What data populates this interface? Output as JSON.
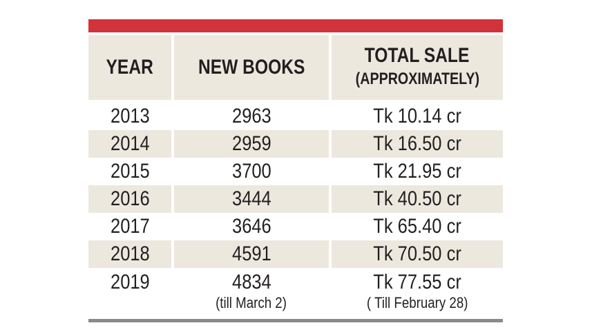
{
  "table": {
    "header": [
      "YEAR",
      "NEW BOOKS",
      "TOTAL SALE",
      "(APPROXIMATELY)"
    ],
    "rows": [
      {
        "year": 2013,
        "new_books": 2963,
        "total_sale": "Tk 10.14 cr"
      },
      {
        "year": 2014,
        "new_books": 2959,
        "total_sale": "Tk 16.50 cr"
      },
      {
        "year": 2015,
        "new_books": 3700,
        "total_sale": "Tk 21.95 cr"
      },
      {
        "year": 2016,
        "new_books": 3444,
        "total_sale": "Tk 40.50 cr"
      },
      {
        "year": 2017,
        "new_books": 3646,
        "total_sale": "Tk 65.40 cr"
      },
      {
        "year": 2018,
        "new_books": 4591,
        "total_sale": "Tk 70.50 cr"
      },
      {
        "year": 2019,
        "new_books": 4834,
        "total_sale": "Tk 77.55 cr",
        "books_note": "(till March 2)",
        "sale_note": "( Till February 28)"
      }
    ]
  }
}
